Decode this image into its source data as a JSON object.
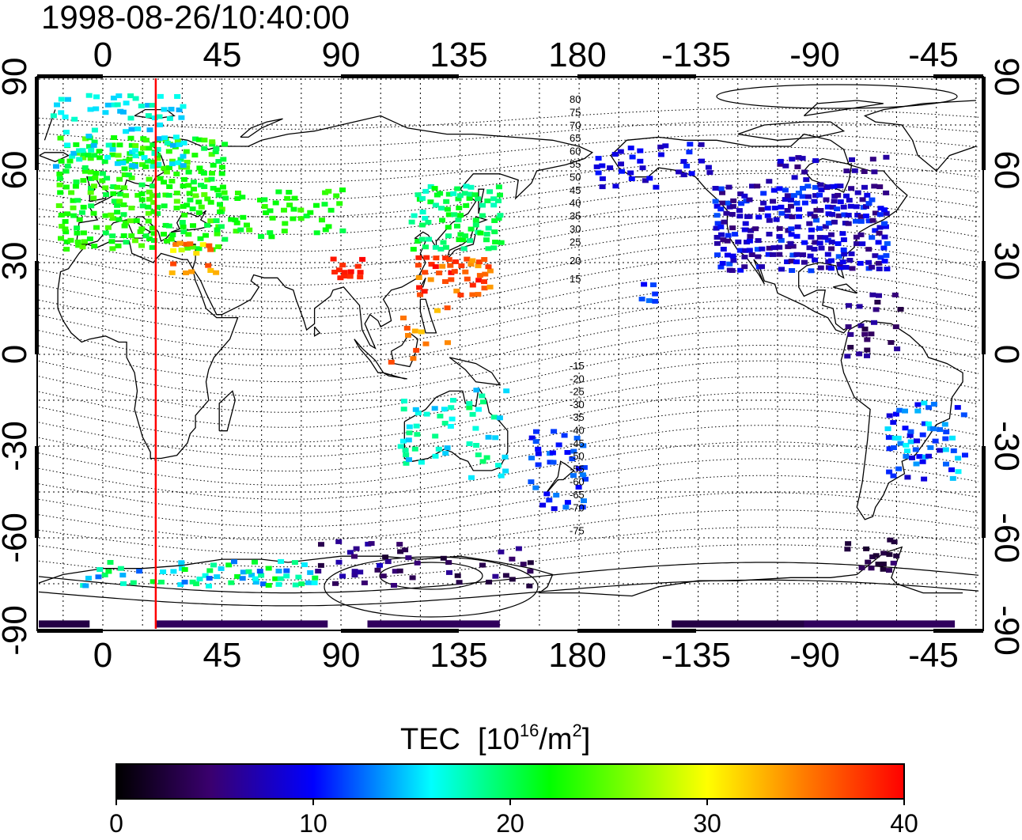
{
  "timestamp": "1998-08-26/10:40:00",
  "colorbar": {
    "title": "TEC",
    "unit_base": "[10",
    "unit_exp": "16",
    "unit_mid": "/m",
    "unit_sq": "2",
    "unit_end": "]",
    "ticks": [
      "0",
      "10",
      "20",
      "30",
      "40"
    ],
    "range": [
      0,
      40
    ],
    "colors": [
      "#000000",
      "#3a006f",
      "#0000ff",
      "#00ffff",
      "#00ff00",
      "#ffff00",
      "#ff7f00",
      "#ff0000"
    ]
  },
  "map": {
    "lon_tick_labels": [
      "0",
      "45",
      "90",
      "135",
      "180",
      "-135",
      "-90",
      "-45"
    ],
    "lat_tick_labels": [
      "90",
      "60",
      "30",
      "0",
      "-30",
      "-60",
      "-90"
    ],
    "geomag_lat_labels_north": [
      "80",
      "75",
      "70",
      "65",
      "60",
      "55",
      "50",
      "45",
      "40",
      "35",
      "30",
      "25",
      "20",
      "15"
    ],
    "geomag_lat_labels_south": [
      "-15",
      "-20",
      "-25",
      "-30",
      "-35",
      "-40",
      "-45",
      "-50",
      "-55",
      "-60",
      "-65",
      "-70",
      "-75"
    ],
    "marker_line_color": "#ff0000",
    "marker_longitude": 20,
    "land_outline_color": "#000000"
  }
}
